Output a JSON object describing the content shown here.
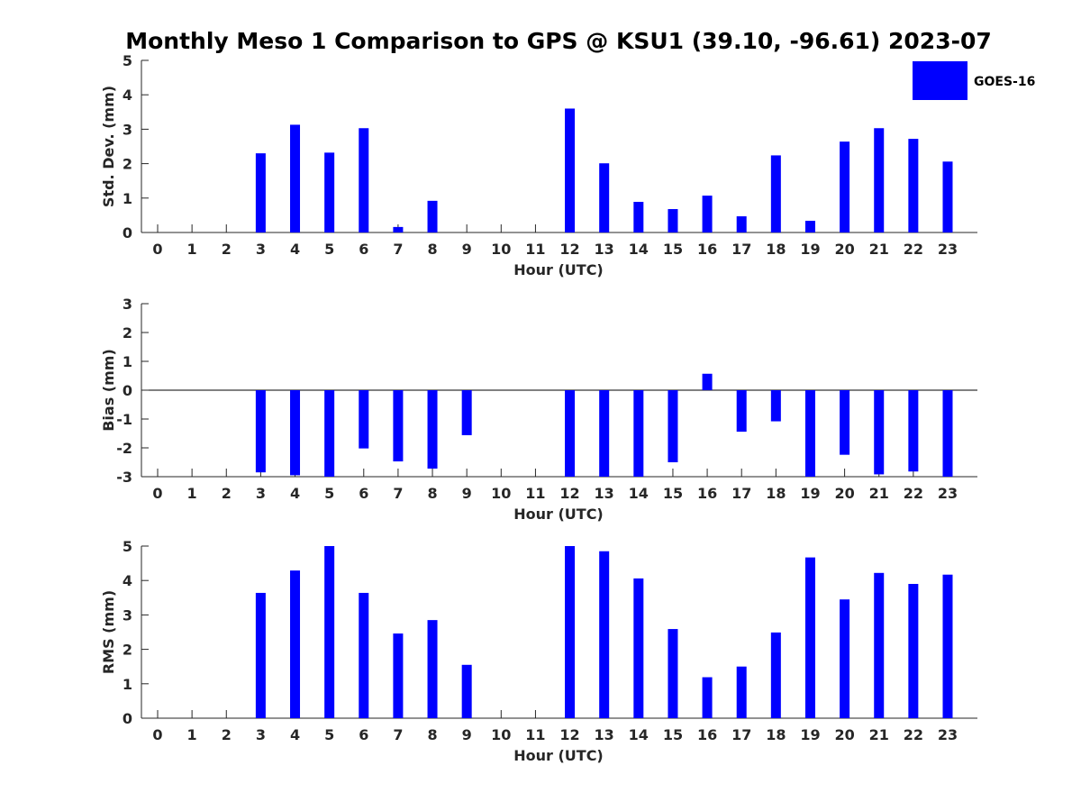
{
  "title": "Monthly Meso 1 Comparison to GPS @ KSU1 (39.10, -96.61) 2023-07",
  "legend": {
    "label": "GOES-16",
    "placement": "top-right"
  },
  "colors": {
    "bar": "#0000ff",
    "axis": "#262626",
    "zero_line": "#000000"
  },
  "chart_data": [
    {
      "type": "bar",
      "xlabel": "Hour (UTC)",
      "ylabel": "Std. Dev. (mm)",
      "ylim": [
        0,
        5
      ],
      "yticks": [
        0,
        1,
        2,
        3,
        4,
        5
      ],
      "categories": [
        "0",
        "1",
        "2",
        "3",
        "4",
        "5",
        "6",
        "7",
        "8",
        "9",
        "10",
        "11",
        "12",
        "13",
        "14",
        "15",
        "16",
        "17",
        "18",
        "19",
        "20",
        "21",
        "22",
        "23"
      ],
      "series": [
        {
          "name": "GOES-16",
          "values": [
            null,
            null,
            null,
            2.3,
            3.13,
            2.32,
            3.03,
            0.16,
            0.92,
            null,
            null,
            null,
            3.6,
            2.01,
            0.89,
            0.68,
            1.07,
            0.47,
            2.24,
            0.34,
            2.64,
            3.03,
            2.72,
            2.06
          ]
        }
      ],
      "grid": false
    },
    {
      "type": "bar",
      "xlabel": "Hour (UTC)",
      "ylabel": "Bias (mm)",
      "ylim": [
        -3,
        3
      ],
      "yticks": [
        -3,
        -2,
        -1,
        0,
        1,
        2,
        3
      ],
      "categories": [
        "0",
        "1",
        "2",
        "3",
        "4",
        "5",
        "6",
        "7",
        "8",
        "9",
        "10",
        "11",
        "12",
        "13",
        "14",
        "15",
        "16",
        "17",
        "18",
        "19",
        "20",
        "21",
        "22",
        "23"
      ],
      "series": [
        {
          "name": "GOES-16",
          "values": [
            null,
            null,
            null,
            -2.85,
            -2.95,
            -3.0,
            -2.02,
            -2.47,
            -2.72,
            -1.56,
            null,
            null,
            -3.0,
            -3.0,
            -3.0,
            -2.5,
            0.57,
            -1.44,
            -1.08,
            -3.0,
            -2.24,
            -2.92,
            -2.82,
            -3.0
          ]
        }
      ],
      "grid": false
    },
    {
      "type": "bar",
      "xlabel": "Hour (UTC)",
      "ylabel": "RMS (mm)",
      "ylim": [
        0,
        5
      ],
      "yticks": [
        0,
        1,
        2,
        3,
        4,
        5
      ],
      "categories": [
        "0",
        "1",
        "2",
        "3",
        "4",
        "5",
        "6",
        "7",
        "8",
        "9",
        "10",
        "11",
        "12",
        "13",
        "14",
        "15",
        "16",
        "17",
        "18",
        "19",
        "20",
        "21",
        "22",
        "23"
      ],
      "series": [
        {
          "name": "GOES-16",
          "values": [
            null,
            null,
            null,
            3.64,
            4.29,
            5.0,
            3.64,
            2.46,
            2.85,
            1.55,
            null,
            null,
            5.0,
            4.85,
            4.06,
            2.59,
            1.19,
            1.5,
            2.49,
            4.67,
            3.45,
            4.22,
            3.9,
            4.17
          ]
        }
      ],
      "grid": false
    }
  ]
}
